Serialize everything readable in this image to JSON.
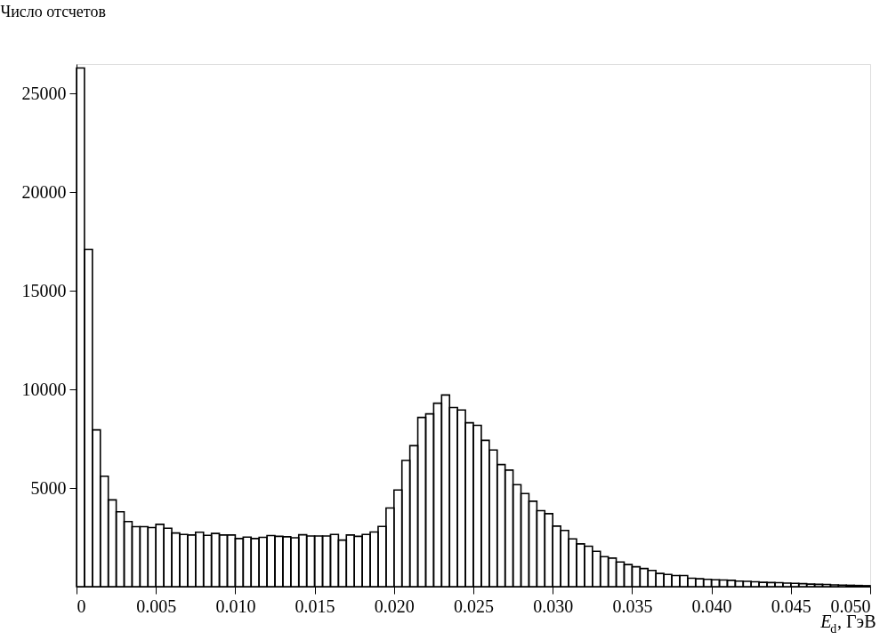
{
  "chart_data": {
    "type": "histogram",
    "ylabel": "Число отсчетов",
    "xlabel": "E$_{d}$, ГэВ",
    "color": "#000000",
    "bins": [
      0,
      0.0005,
      0.001,
      0.0015,
      0.002,
      0.0025,
      0.003,
      0.0035,
      0.004,
      0.0045,
      0.005,
      0.0055,
      0.006,
      0.0065,
      0.007,
      0.0075,
      0.008,
      0.0085,
      0.009,
      0.0095,
      0.01,
      0.0105,
      0.011,
      0.0115,
      0.012,
      0.0125,
      0.013,
      0.0135,
      0.014,
      0.0145,
      0.015,
      0.0155,
      0.016,
      0.0165,
      0.017,
      0.0175,
      0.018,
      0.0185,
      0.019,
      0.0195,
      0.02,
      0.0205,
      0.021,
      0.0215,
      0.022,
      0.0225,
      0.023,
      0.0235,
      0.024,
      0.0245,
      0.025,
      0.0255,
      0.026,
      0.0265,
      0.027,
      0.0275,
      0.028,
      0.0285,
      0.029,
      0.0295,
      0.03,
      0.0305,
      0.031,
      0.0315,
      0.032,
      0.0325,
      0.033,
      0.0335,
      0.034,
      0.0345,
      0.035,
      0.0355,
      0.036,
      0.0365,
      0.037,
      0.0375,
      0.038,
      0.0385,
      0.039,
      0.0395,
      0.04,
      0.0405,
      0.041,
      0.0415,
      0.042,
      0.0425,
      0.043,
      0.0435,
      0.044,
      0.0445,
      0.045,
      0.0455,
      0.046,
      0.0465,
      0.047,
      0.0475,
      0.048,
      0.0485,
      0.049,
      0.0495,
      0.05
    ],
    "values": [
      26300,
      17100,
      7950,
      5600,
      4400,
      3800,
      3300,
      3040,
      3040,
      3000,
      3160,
      2960,
      2720,
      2650,
      2620,
      2760,
      2600,
      2700,
      2620,
      2620,
      2440,
      2510,
      2440,
      2500,
      2590,
      2550,
      2530,
      2480,
      2630,
      2570,
      2570,
      2570,
      2650,
      2360,
      2620,
      2550,
      2650,
      2770,
      3050,
      3990,
      4900,
      6400,
      7150,
      8580,
      8760,
      9300,
      9720,
      9080,
      8960,
      8310,
      8180,
      7420,
      6930,
      6190,
      5910,
      5170,
      4720,
      4330,
      3850,
      3700,
      3070,
      2850,
      2420,
      2170,
      2050,
      1790,
      1520,
      1450,
      1250,
      1120,
      1010,
      920,
      820,
      670,
      620,
      560,
      560,
      430,
      400,
      370,
      350,
      340,
      320,
      280,
      270,
      250,
      220,
      210,
      200,
      180,
      170,
      150,
      130,
      120,
      110,
      90,
      80,
      70,
      60,
      50
    ],
    "xlim": [
      0,
      0.05
    ],
    "ylim": [
      0,
      26500
    ],
    "xticks": [
      0,
      0.005,
      {
        "value": 0.01,
        "label": "0.010"
      },
      0.015,
      {
        "value": 0.02,
        "label": "0.020"
      },
      0.025,
      {
        "value": 0.03,
        "label": "0.030"
      },
      0.035,
      {
        "value": 0.04,
        "label": "0.040"
      },
      0.045,
      {
        "value": 0.05,
        "label": "0.050"
      }
    ],
    "yticks": [
      5000,
      10000,
      15000,
      20000,
      25000
    ],
    "grid": false
  }
}
